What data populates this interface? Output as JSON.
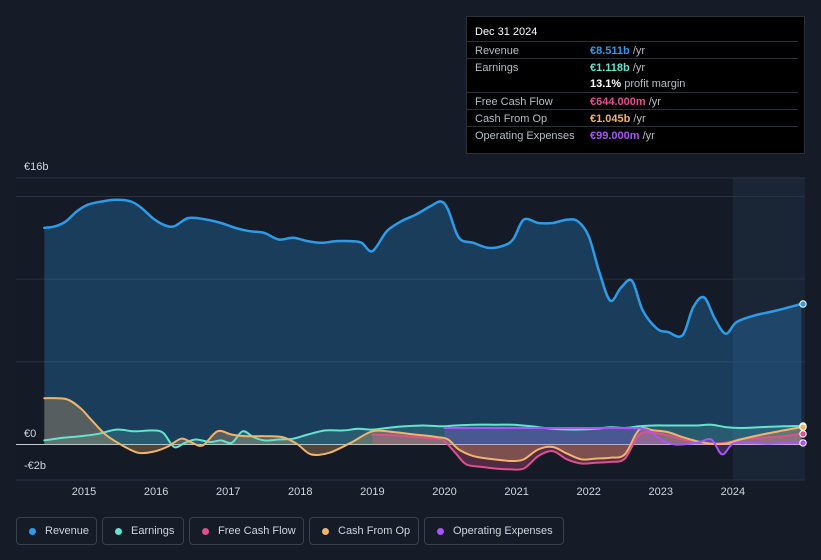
{
  "tooltip": {
    "date": "Dec 31 2024",
    "rows": [
      {
        "label": "Revenue",
        "value": "€8.511b",
        "unit": " /yr",
        "color": "#2e9be8"
      },
      {
        "label": "Earnings",
        "value": "€1.118b",
        "unit": " /yr",
        "color": "#64e3cf"
      },
      {
        "label": "",
        "value": "13.1%",
        "unit": " profit margin",
        "color": "#ffffff"
      },
      {
        "label": "Free Cash Flow",
        "value": "€644.000m",
        "unit": " /yr",
        "color": "#e0508f"
      },
      {
        "label": "Cash From Op",
        "value": "€1.045b",
        "unit": " /yr",
        "color": "#f0b56b"
      },
      {
        "label": "Operating Expenses",
        "value": "€99.000m",
        "unit": " /yr",
        "color": "#a855f7"
      }
    ]
  },
  "legend": [
    {
      "label": "Revenue",
      "color": "#2e9be8"
    },
    {
      "label": "Earnings",
      "color": "#64e3cf"
    },
    {
      "label": "Free Cash Flow",
      "color": "#e0508f"
    },
    {
      "label": "Cash From Op",
      "color": "#f0b56b"
    },
    {
      "label": "Operating Expenses",
      "color": "#a855f7"
    }
  ],
  "chart_data": {
    "type": "area",
    "title": "",
    "xlabel": "",
    "ylabel": "",
    "ylim": [
      -2,
      16
    ],
    "y_tick_labels": [
      "€16b",
      "€0",
      "-€2b"
    ],
    "x_tick_labels": [
      "2015",
      "2016",
      "2017",
      "2018",
      "2019",
      "2020",
      "2021",
      "2022",
      "2023",
      "2024"
    ],
    "x_ticks": [
      2015,
      2016,
      2017,
      2018,
      2019,
      2020,
      2021,
      2022,
      2023,
      2024
    ],
    "xlim": [
      2014.1,
      2025.0
    ],
    "highlight_start": 2024.0,
    "units": "€ billions",
    "series": [
      {
        "name": "Revenue",
        "color": "#2e9be8",
        "x": [
          2014.45,
          2014.6,
          2014.75,
          2014.9,
          2015.05,
          2015.25,
          2015.45,
          2015.65,
          2015.8,
          2015.95,
          2016.1,
          2016.25,
          2016.45,
          2016.7,
          2016.9,
          2017.1,
          2017.3,
          2017.5,
          2017.7,
          2017.9,
          2018.1,
          2018.3,
          2018.5,
          2018.7,
          2018.85,
          2019.0,
          2019.2,
          2019.4,
          2019.6,
          2019.8,
          2019.95,
          2020.05,
          2020.2,
          2020.4,
          2020.6,
          2020.8,
          2020.95,
          2021.1,
          2021.3,
          2021.5,
          2021.7,
          2021.85,
          2022.0,
          2022.15,
          2022.3,
          2022.45,
          2022.6,
          2022.75,
          2022.95,
          2023.1,
          2023.3,
          2023.45,
          2023.6,
          2023.75,
          2023.9,
          2024.05,
          2024.3,
          2024.6,
          2024.95
        ],
        "values": [
          13.1,
          13.2,
          13.5,
          14.1,
          14.5,
          14.7,
          14.8,
          14.7,
          14.3,
          13.7,
          13.3,
          13.2,
          13.7,
          13.6,
          13.4,
          13.1,
          12.9,
          12.8,
          12.4,
          12.5,
          12.3,
          12.2,
          12.3,
          12.3,
          12.2,
          11.7,
          12.9,
          13.5,
          13.9,
          14.4,
          14.7,
          14.2,
          12.5,
          12.2,
          11.9,
          12.0,
          12.4,
          13.6,
          13.4,
          13.4,
          13.6,
          13.5,
          12.6,
          10.4,
          8.7,
          9.5,
          9.9,
          8.1,
          7.0,
          6.8,
          6.6,
          8.3,
          8.9,
          7.6,
          6.7,
          7.4,
          7.8,
          8.1,
          8.5
        ]
      },
      {
        "name": "Earnings",
        "color": "#64e3cf",
        "x": [
          2014.45,
          2014.7,
          2014.95,
          2015.2,
          2015.45,
          2015.7,
          2015.95,
          2016.1,
          2016.25,
          2016.4,
          2016.55,
          2016.75,
          2016.9,
          2017.05,
          2017.2,
          2017.35,
          2017.5,
          2017.7,
          2017.9,
          2018.1,
          2018.35,
          2018.6,
          2018.8,
          2019.0,
          2019.2,
          2019.45,
          2019.7,
          2019.95,
          2020.15,
          2020.4,
          2020.7,
          2020.95,
          2021.2,
          2021.5,
          2021.8,
          2022.1,
          2022.3,
          2022.5,
          2022.7,
          2022.9,
          2023.1,
          2023.3,
          2023.5,
          2023.7,
          2023.9,
          2024.1,
          2024.4,
          2024.7,
          2024.95
        ],
        "values": [
          0.25,
          0.4,
          0.5,
          0.65,
          0.9,
          0.8,
          0.85,
          0.7,
          -0.15,
          0.1,
          0.3,
          0.15,
          0.25,
          0.1,
          0.8,
          0.45,
          0.25,
          0.3,
          0.35,
          0.6,
          0.85,
          0.85,
          0.95,
          0.9,
          1.0,
          1.1,
          1.15,
          1.1,
          1.15,
          1.2,
          1.2,
          1.2,
          1.1,
          0.95,
          0.9,
          0.95,
          1.05,
          1.0,
          1.1,
          1.15,
          1.15,
          1.15,
          1.15,
          1.2,
          1.05,
          1.0,
          1.05,
          1.1,
          1.118
        ]
      },
      {
        "name": "Free Cash Flow",
        "color": "#e0508f",
        "x": [
          2019.0,
          2019.3,
          2019.6,
          2019.9,
          2020.0,
          2020.15,
          2020.3,
          2020.5,
          2020.7,
          2020.9,
          2021.1,
          2021.3,
          2021.5,
          2021.7,
          2021.9,
          2022.1,
          2022.3,
          2022.5,
          2022.7,
          2022.9,
          2023.1,
          2023.3,
          2023.5,
          2023.7,
          2023.9,
          2024.1,
          2024.4,
          2024.7,
          2024.95
        ],
        "values": [
          0.6,
          0.55,
          0.45,
          0.35,
          0.2,
          -0.5,
          -1.2,
          -1.35,
          -1.45,
          -1.5,
          -1.45,
          -0.7,
          -0.4,
          -0.9,
          -1.15,
          -1.1,
          -1.05,
          -0.85,
          0.6,
          0.7,
          0.55,
          0.3,
          0.15,
          0.05,
          0.1,
          0.3,
          0.4,
          0.5,
          0.644
        ]
      },
      {
        "name": "Cash From Op",
        "color": "#f0b56b",
        "x": [
          2014.45,
          2014.75,
          2014.95,
          2015.1,
          2015.3,
          2015.55,
          2015.75,
          2015.95,
          2016.15,
          2016.35,
          2016.5,
          2016.65,
          2016.85,
          2017.05,
          2017.25,
          2017.5,
          2017.75,
          2017.95,
          2018.15,
          2018.4,
          2018.7,
          2019.0,
          2019.3,
          2019.6,
          2019.9,
          2020.05,
          2020.2,
          2020.4,
          2020.6,
          2020.8,
          2020.95,
          2021.1,
          2021.3,
          2021.5,
          2021.7,
          2021.9,
          2022.1,
          2022.3,
          2022.5,
          2022.7,
          2022.9,
          2023.1,
          2023.3,
          2023.5,
          2023.7,
          2023.9,
          2024.1,
          2024.4,
          2024.7,
          2024.95
        ],
        "values": [
          2.8,
          2.75,
          2.2,
          1.5,
          0.6,
          -0.1,
          -0.5,
          -0.45,
          -0.15,
          0.35,
          0.1,
          -0.05,
          0.8,
          0.6,
          0.5,
          0.5,
          0.45,
          0.05,
          -0.6,
          -0.5,
          0.1,
          0.8,
          0.75,
          0.6,
          0.45,
          0.3,
          -0.3,
          -0.7,
          -0.85,
          -0.95,
          -1.0,
          -0.9,
          -0.3,
          -0.15,
          -0.55,
          -0.9,
          -0.85,
          -0.8,
          -0.6,
          0.9,
          0.85,
          0.75,
          0.45,
          0.2,
          0.05,
          0.05,
          0.3,
          0.6,
          0.85,
          1.045
        ]
      },
      {
        "name": "Operating Expenses",
        "color": "#a855f7",
        "x": [
          2020.0,
          2020.5,
          2021.0,
          2021.5,
          2022.0,
          2022.5,
          2022.8,
          2023.0,
          2023.2,
          2023.5,
          2023.7,
          2023.85,
          2024.0,
          2024.2,
          2024.5,
          2024.8,
          2024.95
        ],
        "values": [
          1.0,
          1.0,
          1.0,
          1.0,
          1.0,
          1.0,
          0.9,
          0.3,
          0.0,
          0.1,
          0.3,
          -0.6,
          0.05,
          0.1,
          0.05,
          0.1,
          0.099
        ]
      }
    ]
  }
}
